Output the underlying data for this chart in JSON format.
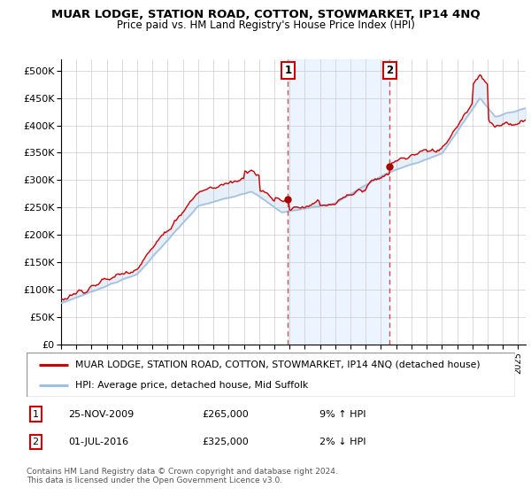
{
  "title": "MUAR LODGE, STATION ROAD, COTTON, STOWMARKET, IP14 4NQ",
  "subtitle": "Price paid vs. HM Land Registry's House Price Index (HPI)",
  "ytick_labels": [
    "£0",
    "£50K",
    "£100K",
    "£150K",
    "£200K",
    "£250K",
    "£300K",
    "£350K",
    "£400K",
    "£450K",
    "£500K"
  ],
  "yticks": [
    0,
    50000,
    100000,
    150000,
    200000,
    250000,
    300000,
    350000,
    400000,
    450000,
    500000
  ],
  "ylim": [
    0,
    520000
  ],
  "xlim_start": 1995.0,
  "xlim_end": 2025.5,
  "sale1_date": 2009.9,
  "sale1_price": 265000,
  "sale2_date": 2016.58,
  "sale2_price": 325000,
  "legend_line1": "MUAR LODGE, STATION ROAD, COTTON, STOWMARKET, IP14 4NQ (detached house)",
  "legend_line2": "HPI: Average price, detached house, Mid Suffolk",
  "footer": "Contains HM Land Registry data © Crown copyright and database right 2024.\nThis data is licensed under the Open Government Licence v3.0.",
  "hpi_color": "#9fbfdf",
  "price_color": "#cc0000",
  "grid_color": "#cccccc",
  "span_color": "#ddeeff"
}
